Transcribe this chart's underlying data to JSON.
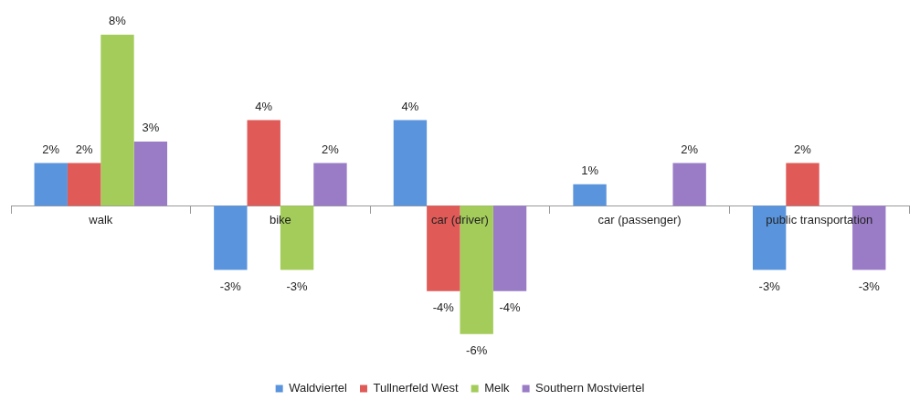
{
  "chart_data": {
    "type": "bar",
    "categories": [
      "walk",
      "bike",
      "car (driver)",
      "car (passenger)",
      "public transportation"
    ],
    "series": [
      {
        "name": "Waldviertel",
        "color": "#5a94dc",
        "values": [
          2,
          -3,
          4,
          1,
          -3
        ],
        "value_labels": [
          "2%",
          "-3%",
          "4%",
          "1%",
          "-3%"
        ]
      },
      {
        "name": "Tullnerfeld West",
        "color": "#e05a57",
        "values": [
          2,
          4,
          -4,
          null,
          2
        ],
        "value_labels": [
          "2%",
          "4%",
          "-4%",
          null,
          "2%"
        ]
      },
      {
        "name": "Melk",
        "color": "#a3cc5a",
        "values": [
          8,
          -3,
          -6,
          null,
          null
        ],
        "value_labels": [
          "8%",
          "-3%",
          "-6%",
          null,
          null
        ]
      },
      {
        "name": "Southern Mostviertel",
        "color": "#9a7cc6",
        "values": [
          3,
          2,
          -4,
          2,
          -3
        ],
        "value_labels": [
          "3%",
          "2%",
          "-4%",
          "2%",
          "-3%"
        ]
      }
    ],
    "legend": "bottom",
    "grid": false
  }
}
